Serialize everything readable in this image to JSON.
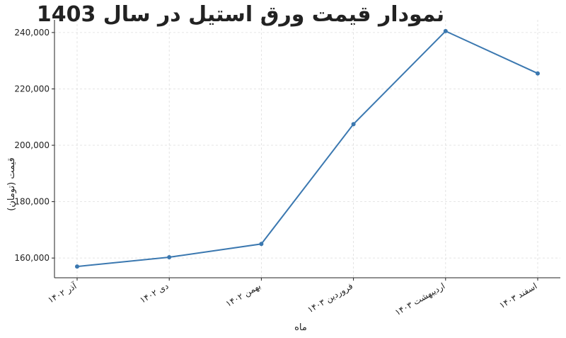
{
  "chart_data": {
    "type": "line",
    "title": "نمودار قیمت ورق استیل در سال 1403",
    "x_label": "ماه",
    "y_label": "قیمت (تومان)",
    "categories": [
      "آذر ۱۴۰۲",
      "دی ۱۴۰۲",
      "بهمن ۱۴۰۲",
      "فروردین ۱۴۰۳",
      "اردیبهشت ۱۴۰۳",
      "اسفند ۱۴۰۳"
    ],
    "values": [
      157000,
      160300,
      165000,
      207500,
      240500,
      225500
    ],
    "color": "#3b78b0",
    "ylim": [
      153000,
      244500
    ],
    "yticks": [
      {
        "value": 160000,
        "label": "160,000"
      },
      {
        "value": 180000,
        "label": "180,000"
      },
      {
        "value": 200000,
        "label": "200,000"
      },
      {
        "value": 220000,
        "label": "220,000"
      },
      {
        "value": 240000,
        "label": "240,000"
      }
    ],
    "grid": true
  }
}
